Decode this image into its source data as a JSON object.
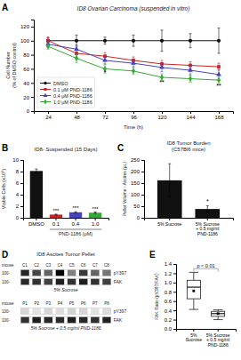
{
  "chart_data": [
    {
      "type": "line",
      "panel_label": "A",
      "title": "ID8 Ovarian Carcinoma (suspended in vitro)",
      "xlabel": "Time (h)",
      "ylabel": "Cell Number\n(% of DMSO control)",
      "x": [
        24,
        48,
        72,
        96,
        120,
        144,
        168
      ],
      "xlim": [
        12,
        180
      ],
      "xticks": [
        24,
        48,
        72,
        96,
        120,
        144,
        168
      ],
      "ylim": [
        0,
        130
      ],
      "yticks": [
        0,
        20,
        40,
        60,
        80,
        100,
        120
      ],
      "series": [
        {
          "name": "DMSO",
          "color": "#111111",
          "marker": "circle",
          "values": [
            100,
            100,
            100,
            100,
            100,
            100,
            100
          ],
          "errors": [
            5,
            8,
            5,
            8,
            15,
            10,
            18
          ]
        },
        {
          "name": "0.1 μM PND-1186",
          "color": "#cc2222",
          "marker": "square",
          "values": [
            100,
            82,
            78,
            72,
            67,
            65,
            63
          ],
          "errors": [
            4,
            6,
            5,
            5,
            5,
            5,
            5
          ]
        },
        {
          "name": "0.4 μM PND-1186",
          "color": "#4444bb",
          "marker": "triangle",
          "values": [
            95,
            88,
            72,
            68,
            62,
            58,
            52
          ],
          "errors": [
            4,
            6,
            5,
            5,
            6,
            6,
            7
          ]
        },
        {
          "name": "1.0 μM PND-1186",
          "color": "#33aa33",
          "marker": "diamond",
          "values": [
            92,
            75,
            60,
            57,
            48,
            46,
            44
          ],
          "errors": [
            4,
            6,
            6,
            5,
            5,
            5,
            6
          ]
        }
      ],
      "legend": "lower left",
      "annotations": [
        {
          "text": "*",
          "x": 72,
          "y": 52
        },
        {
          "text": "**",
          "x": 120,
          "y": 38
        },
        {
          "text": "**",
          "x": 168,
          "y": 33
        }
      ]
    },
    {
      "type": "bar",
      "panel_label": "B",
      "title": "ID8- Suspended (15 Days)",
      "xlabel": "PND-1186 (μM)",
      "ylabel": "Viable Cells (x10⁵)",
      "categories": [
        "DMSO",
        "0.1",
        "0.4",
        "1.0"
      ],
      "values": [
        8.1,
        0.55,
        0.95,
        0.88
      ],
      "errors": [
        0.35,
        0.08,
        0.12,
        0.12
      ],
      "colors": [
        "#111111",
        "#cc2222",
        "#4444bb",
        "#33aa33"
      ],
      "ylim": [
        0,
        10
      ],
      "yticks": [
        0,
        2,
        4,
        6,
        8,
        10
      ],
      "annotations": [
        null,
        "***",
        "***",
        "***"
      ]
    },
    {
      "type": "bar",
      "panel_label": "C",
      "title": "ID8 Tumor Burden\n(C57Bl6 mice)",
      "ylabel": "Pellet Volume - Ascites (μL)",
      "categories": [
        "5% Sucrose",
        "5% Sucrose\n+ 0.5 mg/ml\nPND-1186"
      ],
      "values": [
        162,
        38
      ],
      "errors": [
        72,
        14
      ],
      "colors": [
        "#111111",
        "#111111"
      ],
      "ylim": [
        0,
        250
      ],
      "yticks": [
        0,
        50,
        100,
        150,
        200,
        250
      ],
      "annotations": [
        null,
        "*"
      ]
    },
    {
      "type": "heatmap",
      "panel_label": "D",
      "title": "ID8 Ascites Tumor Pellet",
      "groups": [
        {
          "label": "5% Sucrose",
          "sample_title": "mouse",
          "samples": [
            "C1",
            "C2",
            "C3",
            "C4",
            "C5",
            "C6",
            "C7",
            "C8"
          ],
          "rows": [
            {
              "name": "pY397",
              "mw": "100-",
              "values": [
                0.88,
                0.78,
                0.68,
                0.98,
                0.58,
                0.82,
                0.68,
                0.62
              ]
            },
            {
              "name": "FAK",
              "mw": "100-",
              "values": [
                0.87,
                0.84,
                0.8,
                0.9,
                0.84,
                0.9,
                0.84,
                0.8
              ]
            }
          ]
        },
        {
          "label": "5% Sucrose + 0.5 mg/ml PND-1186",
          "sample_title": "mouse",
          "samples": [
            "P1",
            "P2",
            "P3",
            "P4",
            "P5",
            "P6",
            "P7",
            "P8"
          ],
          "rows": [
            {
              "name": "pY397",
              "mw": "100-",
              "values": [
                0.26,
                0.2,
                0.26,
                0.23,
                0.28,
                0.26,
                0.2,
                0.23
              ]
            },
            {
              "name": "FAK",
              "mw": "100-",
              "values": [
                0.84,
                0.9,
                0.87,
                0.86,
                0.9,
                0.87,
                0.85,
                0.89
              ]
            }
          ]
        }
      ]
    },
    {
      "type": "box",
      "panel_label": "E",
      "ylabel": "FAK Ratio (pY397/FAK)",
      "categories": [
        "5%\nSucrose",
        "5% Sucrose\n+ 0.5 mg/ml\nPND-1186"
      ],
      "boxes": [
        {
          "median": 0.9,
          "q1": 0.65,
          "q3": 1.05,
          "whisker_low": 0.42,
          "whisker_high": 1.22,
          "mean": 0.82
        },
        {
          "median": 0.33,
          "q1": 0.27,
          "q3": 0.38,
          "whisker_low": 0.2,
          "whisker_high": 0.41,
          "mean": 0.33
        }
      ],
      "ylim": [
        0,
        1.4
      ],
      "yticks": [
        {
          "value": 0.0,
          "label": "0.0"
        },
        0.2,
        0.4,
        0.6,
        0.8,
        {
          "value": 1.0,
          "label": "1.0"
        },
        1.2,
        1.4
      ],
      "annotations": [
        {
          "text": "p < 0.01",
          "y": 1.3,
          "y_end": 1.24
        }
      ]
    }
  ]
}
